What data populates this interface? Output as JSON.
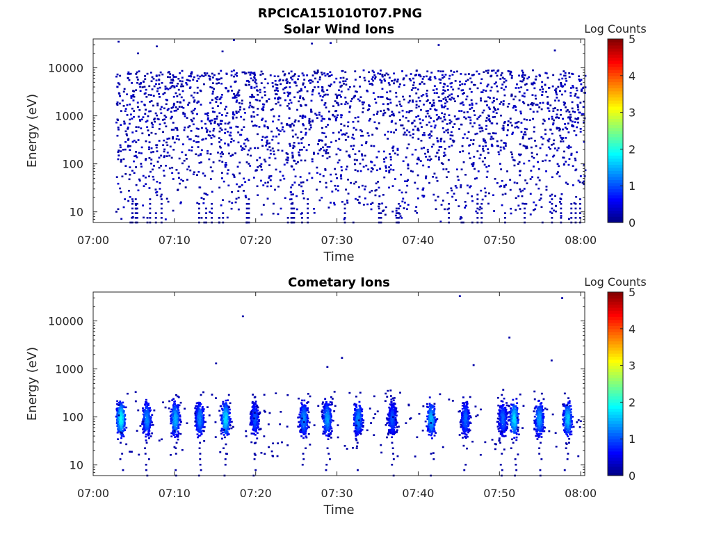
{
  "figure": {
    "title": "RPCICA151010T07.PNG"
  },
  "chart_data": [
    {
      "type": "heatmap",
      "title": "Solar Wind Ions",
      "xlabel": "Time",
      "ylabel": "Energy (eV)",
      "x_tick_labels": [
        "07:00",
        "07:10",
        "07:20",
        "07:30",
        "07:40",
        "07:50",
        "08:00"
      ],
      "x_range_minutes": [
        0,
        60.5
      ],
      "y_scale": "log",
      "y_range": [
        6,
        40000
      ],
      "y_tick_values": [
        10,
        100,
        1000,
        10000
      ],
      "y_tick_labels": [
        "10",
        "100",
        "1000",
        "10000"
      ],
      "colorbar": {
        "label": "Log Counts",
        "range": [
          0,
          5
        ],
        "tick_labels": [
          "0",
          "1",
          "2",
          "3",
          "4",
          "5"
        ],
        "colormap": "jet"
      },
      "description_of_data": {
        "speckle_time_range_minutes": [
          2.7,
          60.5
        ],
        "speckle_energy_range_eV": [
          6,
          9000
        ],
        "speckle_log_counts": [
          0,
          0.4
        ],
        "scattered_high_points": [
          {
            "t": 3.0,
            "e": 35000
          },
          {
            "t": 5.4,
            "e": 20000
          },
          {
            "t": 7.7,
            "e": 28000
          },
          {
            "t": 15.8,
            "e": 22000
          },
          {
            "t": 17.2,
            "e": 38000
          },
          {
            "t": 26.8,
            "e": 32000
          },
          {
            "t": 29.1,
            "e": 33000
          },
          {
            "t": 42.4,
            "e": 30000
          },
          {
            "t": 56.7,
            "e": 23000
          }
        ]
      }
    },
    {
      "type": "heatmap",
      "title": "Cometary Ions",
      "xlabel": "Time",
      "ylabel": "Energy (eV)",
      "x_tick_labels": [
        "07:00",
        "07:10",
        "07:20",
        "07:30",
        "07:40",
        "07:50",
        "08:00"
      ],
      "x_range_minutes": [
        0,
        60.5
      ],
      "y_scale": "log",
      "y_range": [
        6,
        40000
      ],
      "y_tick_values": [
        10,
        100,
        1000,
        10000
      ],
      "y_tick_labels": [
        "10",
        "100",
        "1000",
        "10000"
      ],
      "colorbar": {
        "label": "Log Counts",
        "range": [
          0,
          5
        ],
        "tick_labels": [
          "0",
          "1",
          "2",
          "3",
          "4",
          "5"
        ],
        "colormap": "jet"
      },
      "bursts": [
        {
          "t": 3.3,
          "peak": 1.8
        },
        {
          "t": 6.5,
          "peak": 1.2
        },
        {
          "t": 10.0,
          "peak": 1.4
        },
        {
          "t": 13.0,
          "peak": 1.2
        },
        {
          "t": 16.2,
          "peak": 1.6
        },
        {
          "t": 19.8,
          "peak": 0.9
        },
        {
          "t": 25.8,
          "peak": 1.2
        },
        {
          "t": 28.7,
          "peak": 1.3
        },
        {
          "t": 32.5,
          "peak": 1.2
        },
        {
          "t": 36.7,
          "peak": 0.9
        },
        {
          "t": 41.5,
          "peak": 1.4
        },
        {
          "t": 45.7,
          "peak": 1.0
        },
        {
          "t": 50.3,
          "peak": 1.0
        },
        {
          "t": 51.7,
          "peak": 1.6
        },
        {
          "t": 54.8,
          "peak": 1.3
        },
        {
          "t": 58.3,
          "peak": 1.5
        }
      ],
      "burst_energy_range_eV": [
        6,
        450
      ],
      "scattered_high_points": [
        {
          "t": 18.3,
          "e": 12500
        },
        {
          "t": 15.0,
          "e": 1300
        },
        {
          "t": 45.0,
          "e": 33000
        },
        {
          "t": 51.1,
          "e": 4500
        },
        {
          "t": 56.3,
          "e": 1500
        },
        {
          "t": 57.6,
          "e": 30000
        },
        {
          "t": 30.5,
          "e": 1700
        },
        {
          "t": 28.7,
          "e": 1100
        },
        {
          "t": 46.7,
          "e": 1200
        }
      ]
    }
  ]
}
